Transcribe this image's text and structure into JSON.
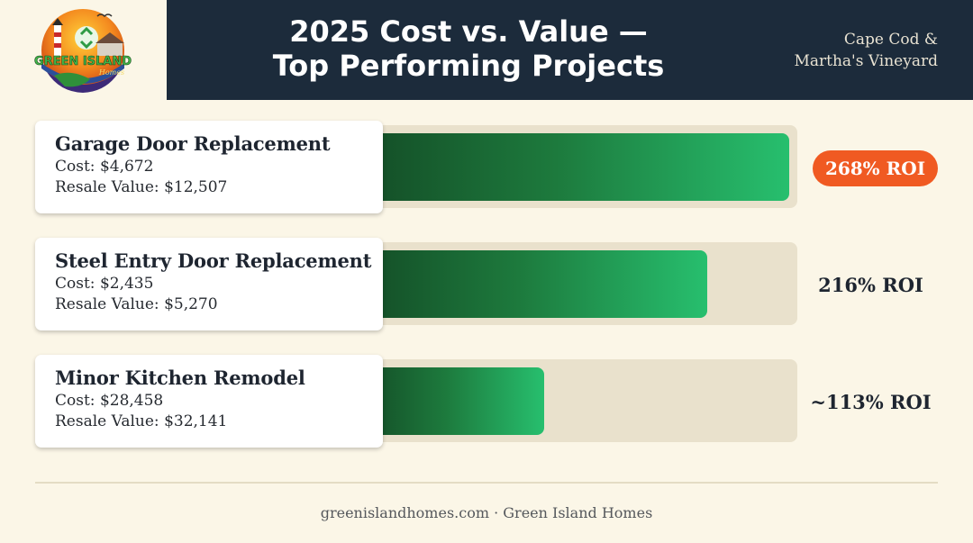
{
  "brand": {
    "logo_text_1": "GREEN ISLAND",
    "logo_text_2": "Homes"
  },
  "header": {
    "title_line1": "2025 Cost vs. Value —",
    "title_line2": "Top Performing Projects",
    "region_line1": "Cape Cod &",
    "region_line2": "Martha's Vineyard"
  },
  "colors": {
    "header_bg": "#1c2b3b",
    "page_bg": "#fbf6e7",
    "bar_dark": "#144e27",
    "bar_light": "#27bf6e",
    "highlight": "#f05a22"
  },
  "chart_data": {
    "type": "bar",
    "orientation": "horizontal",
    "categories": [
      "Garage Door Replacement",
      "Steel Entry Door Replacement",
      "Minor Kitchen Remodel"
    ],
    "values": [
      268,
      216,
      113
    ],
    "xlim": [
      0,
      290
    ],
    "cost_label_prefix": "Cost: ",
    "resale_label_prefix": "Resale Value: ",
    "costs": [
      "$4,672",
      "$2,435",
      "$28,458"
    ],
    "resale_values": [
      "$12,507",
      "$5,270",
      "$32,141"
    ],
    "roi_labels": [
      "268% ROI",
      "216% ROI",
      "~113% ROI"
    ]
  },
  "footer": {
    "text": "greenislandhomes.com · Green Island Homes"
  }
}
